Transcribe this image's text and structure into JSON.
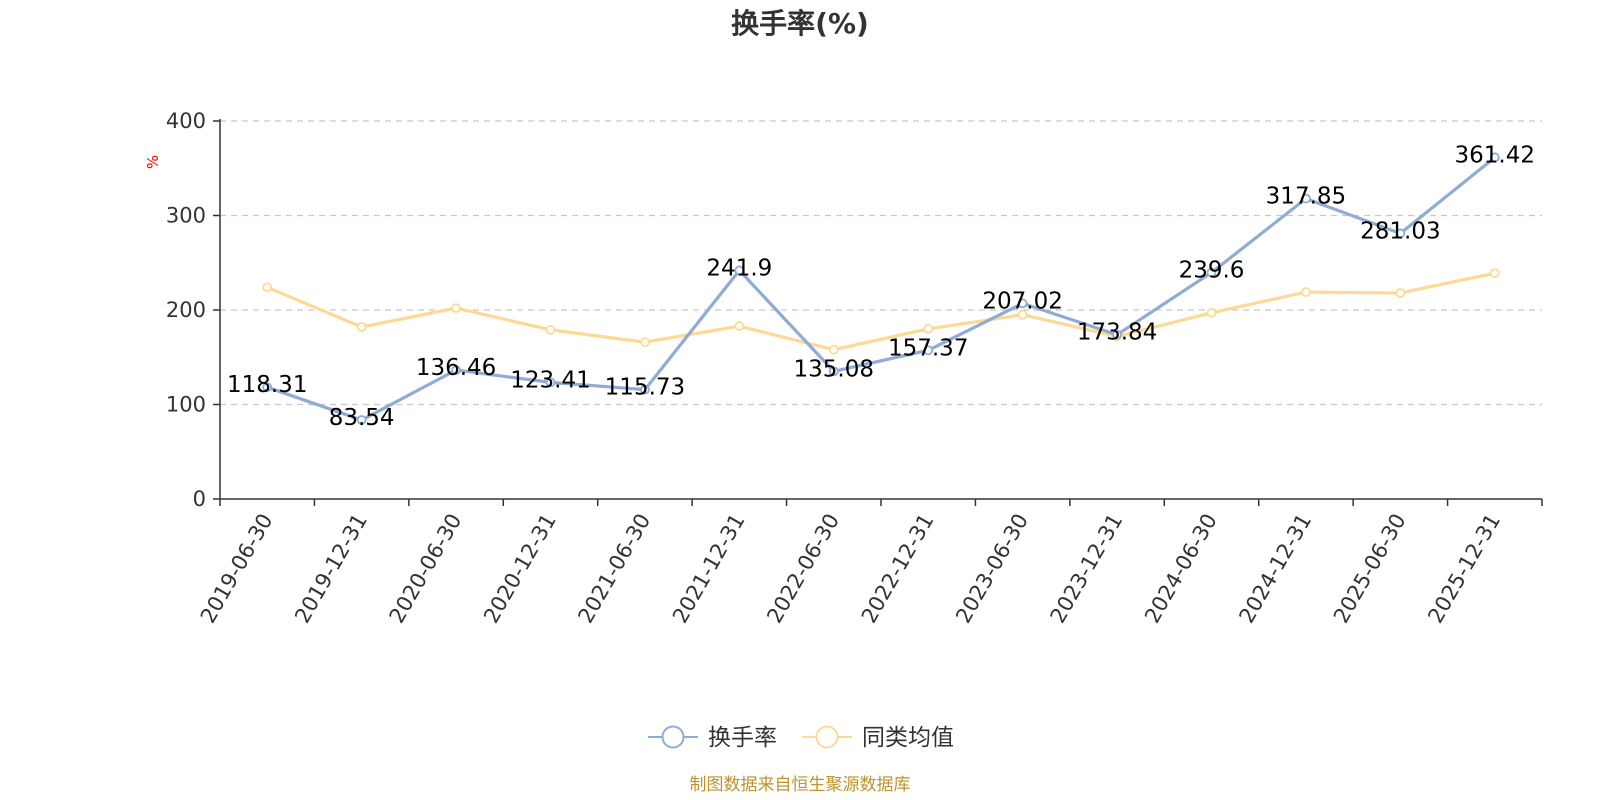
{
  "chart_data": {
    "type": "line",
    "title": "换手率(%)",
    "ylabel": "%",
    "xlabel": "",
    "ylim": [
      0,
      400
    ],
    "yticks": [
      0,
      100,
      200,
      300,
      400
    ],
    "grid": true,
    "legend_position": "bottom-center",
    "categories": [
      "2019-06-30",
      "2019-12-31",
      "2020-06-30",
      "2020-12-31",
      "2021-06-30",
      "2021-12-31",
      "2022-06-30",
      "2022-12-31",
      "2023-06-30",
      "2023-12-31",
      "2024-06-30",
      "2024-12-31",
      "2025-06-30",
      "2025-12-31"
    ],
    "series": [
      {
        "name": "换手率",
        "color": "#8eacd6",
        "show_labels": true,
        "values": [
          118.31,
          83.54,
          136.46,
          123.41,
          115.73,
          241.9,
          135.08,
          157.37,
          207.02,
          173.84,
          239.6,
          317.85,
          281.03,
          361.42
        ]
      },
      {
        "name": "同类均值",
        "color": "#fcd995",
        "show_labels": false,
        "values": [
          224,
          182,
          202,
          179,
          166,
          183,
          158,
          180,
          195,
          172,
          197,
          219,
          218,
          239
        ]
      }
    ]
  },
  "source_note": "制图数据来自恒生聚源数据库",
  "colors": {
    "axis": "#333333",
    "grid": "#c8c8c8",
    "unit": "#ff0000",
    "source": "#c0922a"
  }
}
